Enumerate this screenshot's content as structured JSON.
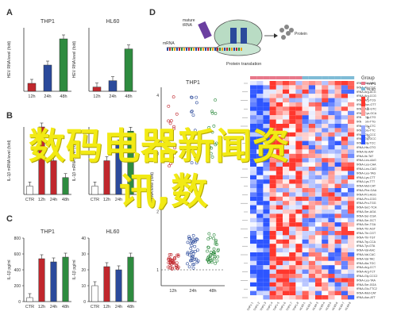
{
  "watermark": {
    "line1": "数码电器新闻资",
    "line2": "讯,数"
  },
  "panelA": {
    "letter": "A",
    "charts": [
      {
        "title": "THP1",
        "ylabel": "HEV RNA level (fold)",
        "categories": [
          "12h",
          "24h",
          "48h"
        ],
        "values": [
          1.0,
          3.3,
          6.6
        ],
        "ylim": [
          0,
          8
        ],
        "colors": [
          "#c0272d",
          "#2b4a9b",
          "#2e8b3f"
        ]
      },
      {
        "title": "HL60",
        "ylabel": "HEV RNA level (fold)",
        "categories": [
          "12h",
          "24h",
          "48h"
        ],
        "values": [
          1.0,
          2.5,
          10.0
        ],
        "ylim": [
          0,
          15
        ],
        "colors": [
          "#c0272d",
          "#2b4a9b",
          "#2e8b3f"
        ]
      }
    ]
  },
  "panelB": {
    "letter": "B",
    "charts": [
      {
        "ylabel": "IL-1β mRNA level (fold)",
        "categories": [
          "CTR",
          "12h",
          "24h",
          "48h"
        ],
        "values": [
          1.0,
          8.0,
          4.0,
          2.0
        ]
      },
      {
        "ylabel": "IL-1β mRNA level (fold)",
        "categories": [
          "CTR",
          "12h",
          "24h",
          "48h"
        ],
        "values": [
          1.0,
          4.0,
          6.0,
          7.5
        ]
      }
    ]
  },
  "panelC": {
    "letter": "C",
    "charts": [
      {
        "title": "THP1",
        "ylabel": "IL-1β pg/ml",
        "categories": [
          "CTR",
          "12h",
          "24h",
          "48h"
        ],
        "values": [
          50,
          540,
          500,
          560
        ],
        "ylim": [
          0,
          800
        ],
        "yticks": [
          "0",
          "200",
          "400",
          "600",
          "800"
        ]
      },
      {
        "title": "HL60",
        "ylabel": "IL-1β pg/ml",
        "categories": [
          "CTR",
          "12h",
          "24h",
          "48h"
        ],
        "values": [
          10,
          22,
          20,
          28
        ],
        "ylim": [
          0,
          40
        ],
        "yticks": [
          "0",
          "10",
          "20",
          "30",
          "40"
        ]
      }
    ]
  },
  "panelD": {
    "letter": "D",
    "diagram": {
      "mature_trna": "mature",
      "trna": "tRNA",
      "mrna": "mRNA",
      "protein": "Protein",
      "caption": "Protein translation"
    },
    "scatter": {
      "title": "THP1",
      "ylabel": "tRNA level (fold)",
      "categories": [
        "12h",
        "24h",
        "48h"
      ],
      "yticks": [
        "1",
        "2",
        "3",
        "4"
      ]
    },
    "heatmap": {
      "legend_title": "Group",
      "legend_items": [
        "THP1",
        "HL60"
      ],
      "scale": [
        "2",
        "1",
        "0",
        "-1",
        "-2"
      ],
      "rows": [
        "tRNA-Ala-AGC",
        "tRNA-Ala-CGC",
        "tRNA-Arg-ACG",
        "tRNA-Arg-CCG",
        "tRNA-Arg-TCG",
        "tRNA-Asn-GTT",
        "tRNA-Asp-GTC",
        "tRNA-Cys-GCA",
        "tRNA-Gln-CTG",
        "tRNA-Gln-TTG",
        "tRNA-Glu-CTC",
        "tRNA-Glu-TTC",
        "tRNA-Gly-CCC",
        "tRNA-Gly-GCC",
        "tRNA-Gly-TCC",
        "tRNA-His-GTG",
        "tRNA-Ile-AAT",
        "tRNA-Ile-TAT",
        "tRNA-Leu-AAG",
        "tRNA-Leu-CAA",
        "tRNA-Leu-CAG",
        "tRNA-Leu-TAG",
        "tRNA-Lys-CTT",
        "tRNA-Lys-TTT",
        "tRNA-Met-CAT",
        "tRNA-Phe-GAA",
        "tRNA-Pro-AGG",
        "tRNA-Pro-CGG",
        "tRNA-Pro-TGG",
        "tRNA-SeC-TCA",
        "tRNA-Ser-AGA",
        "tRNA-Ser-CGA",
        "tRNA-Ser-GCT",
        "tRNA-Ser-TGA",
        "tRNA-Thr-AGT",
        "tRNA-Thr-CGT",
        "tRNA-Thr-TGT",
        "tRNA-Trp-CCA",
        "tRNA-Tyr-GTA",
        "tRNA-Val-AAC",
        "tRNA-Val-CAC",
        "tRNA-Val-TAC",
        "tRNA-Ala-TGC",
        "tRNA-Arg-CCT",
        "tRNA-Arg-TCT",
        "tRNA-Gly-CCC2",
        "tRNA-Leu-TAA",
        "tRNA-Ser-GGA",
        "tRNA-Glu-TTC2",
        "tRNA-iMet-CAT",
        "tRNA-Asn-ATT"
      ],
      "cols": [
        "THP1-1",
        "THP1-2",
        "THP1-3",
        "THP1-4",
        "THP1-5",
        "THP1-6",
        "THP1-7",
        "THP1-8",
        "HL60-1",
        "HL60-2",
        "HL60-3",
        "HL60-4",
        "HL60-5",
        "HL60-6",
        "HL60-7",
        "HL60-8"
      ]
    }
  }
}
